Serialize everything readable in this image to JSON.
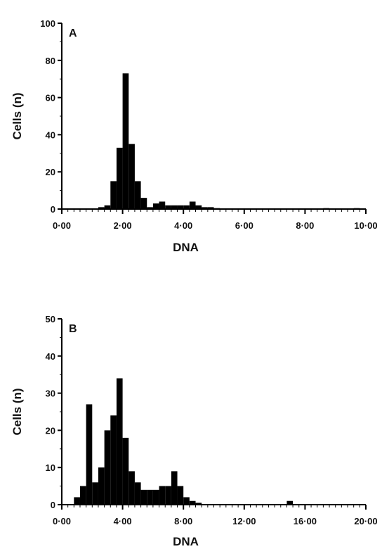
{
  "chart_data": [
    {
      "type": "bar",
      "panel_label": "A",
      "xlabel": "DNA",
      "ylabel": "Cells (n)",
      "xlim": [
        0,
        10
      ],
      "ylim": [
        0,
        100
      ],
      "xticks": [
        "0·00",
        "2·00",
        "4·00",
        "6·00",
        "8·00",
        "10·00"
      ],
      "yticks": [
        "0",
        "20",
        "40",
        "60",
        "80",
        "100"
      ],
      "bin_width": 0.2,
      "bins": [
        {
          "x": 1.2,
          "y": 1
        },
        {
          "x": 1.4,
          "y": 2
        },
        {
          "x": 1.6,
          "y": 15
        },
        {
          "x": 1.8,
          "y": 33
        },
        {
          "x": 2.0,
          "y": 73
        },
        {
          "x": 2.2,
          "y": 35
        },
        {
          "x": 2.4,
          "y": 15
        },
        {
          "x": 2.6,
          "y": 6
        },
        {
          "x": 2.8,
          "y": 1
        },
        {
          "x": 3.0,
          "y": 3
        },
        {
          "x": 3.2,
          "y": 4
        },
        {
          "x": 3.4,
          "y": 2
        },
        {
          "x": 3.6,
          "y": 2
        },
        {
          "x": 3.8,
          "y": 2
        },
        {
          "x": 4.0,
          "y": 2
        },
        {
          "x": 4.2,
          "y": 4
        },
        {
          "x": 4.4,
          "y": 2
        },
        {
          "x": 4.6,
          "y": 1
        },
        {
          "x": 4.8,
          "y": 1
        },
        {
          "x": 5.0,
          "y": 0.5
        },
        {
          "x": 8.6,
          "y": 0.5
        },
        {
          "x": 9.6,
          "y": 0.5
        }
      ],
      "color": "#000000"
    },
    {
      "type": "bar",
      "panel_label": "B",
      "xlabel": "DNA",
      "ylabel": "Cells (n)",
      "xlim": [
        0,
        20
      ],
      "ylim": [
        0,
        50
      ],
      "xticks": [
        "0·00",
        "4·00",
        "8·00",
        "12·00",
        "16·00",
        "20·00"
      ],
      "yticks": [
        "0",
        "10",
        "20",
        "30",
        "40",
        "50"
      ],
      "bin_width": 0.4,
      "bins": [
        {
          "x": 0.8,
          "y": 2
        },
        {
          "x": 1.2,
          "y": 5
        },
        {
          "x": 1.6,
          "y": 27
        },
        {
          "x": 2.0,
          "y": 6
        },
        {
          "x": 2.4,
          "y": 10
        },
        {
          "x": 2.8,
          "y": 20
        },
        {
          "x": 3.2,
          "y": 24
        },
        {
          "x": 3.6,
          "y": 34
        },
        {
          "x": 4.0,
          "y": 18
        },
        {
          "x": 4.4,
          "y": 9
        },
        {
          "x": 4.8,
          "y": 6
        },
        {
          "x": 5.2,
          "y": 4
        },
        {
          "x": 5.6,
          "y": 4
        },
        {
          "x": 6.0,
          "y": 4
        },
        {
          "x": 6.4,
          "y": 5
        },
        {
          "x": 6.8,
          "y": 5
        },
        {
          "x": 7.2,
          "y": 9
        },
        {
          "x": 7.6,
          "y": 5
        },
        {
          "x": 8.0,
          "y": 2
        },
        {
          "x": 8.4,
          "y": 1
        },
        {
          "x": 8.8,
          "y": 0.5
        },
        {
          "x": 14.8,
          "y": 1
        }
      ],
      "color": "#000000"
    }
  ]
}
